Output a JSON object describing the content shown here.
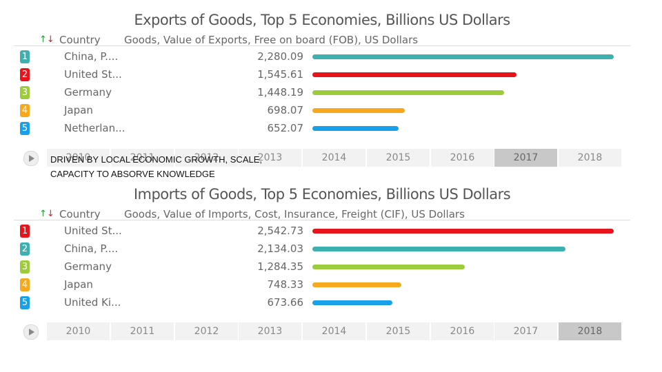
{
  "overlay_text": "DRIVEN BY LOCAL ECONOMIC GROWTH, SCALE,\nCAPACITY TO ABSORVE KNOWLEDGE",
  "chart_data": [
    {
      "type": "bar",
      "title": "Exports of Goods, Top 5 Economies, Billions US Dollars",
      "sort_icon": "↑↓",
      "country_header": "Country",
      "value_header": "Goods, Value of Exports, Free on board (FOB), US Dollars",
      "xlim": [
        0,
        2280.09
      ],
      "rows": [
        {
          "rank": "1",
          "country": "China, P....",
          "value": 2280.09,
          "value_label": "2,280.09",
          "color": "#3fb0b0"
        },
        {
          "rank": "2",
          "country": "United St...",
          "value": 1545.61,
          "value_label": "1,545.61",
          "color": "#e8141c"
        },
        {
          "rank": "3",
          "country": "Germany",
          "value": 1448.19,
          "value_label": "1,448.19",
          "color": "#9ccc3c"
        },
        {
          "rank": "4",
          "country": "Japan",
          "value": 698.07,
          "value_label": "698.07",
          "color": "#f6a81e"
        },
        {
          "rank": "5",
          "country": "Netherlan...",
          "value": 652.07,
          "value_label": "652.07",
          "color": "#1aa0e8"
        }
      ],
      "timeline": {
        "years": [
          "2010",
          "2011",
          "2012",
          "2013",
          "2014",
          "2015",
          "2016",
          "2017",
          "2018"
        ],
        "selected": "2017"
      }
    },
    {
      "type": "bar",
      "title": "Imports of Goods, Top 5 Economies, Billions US Dollars",
      "sort_icon": "↑↓",
      "country_header": "Country",
      "value_header": "Goods, Value of Imports, Cost, Insurance, Freight (CIF), US Dollars",
      "xlim": [
        0,
        2542.73
      ],
      "rows": [
        {
          "rank": "1",
          "country": "United St...",
          "value": 2542.73,
          "value_label": "2,542.73",
          "color": "#e8141c"
        },
        {
          "rank": "2",
          "country": "China, P....",
          "value": 2134.03,
          "value_label": "2,134.03",
          "color": "#3fb0b0"
        },
        {
          "rank": "3",
          "country": "Germany",
          "value": 1284.35,
          "value_label": "1,284.35",
          "color": "#9ccc3c"
        },
        {
          "rank": "4",
          "country": "Japan",
          "value": 748.33,
          "value_label": "748.33",
          "color": "#f6a81e"
        },
        {
          "rank": "5",
          "country": "United Ki...",
          "value": 673.66,
          "value_label": "673.66",
          "color": "#1aa0e8"
        }
      ],
      "timeline": {
        "years": [
          "2010",
          "2011",
          "2012",
          "2013",
          "2014",
          "2015",
          "2016",
          "2017",
          "2018"
        ],
        "selected": "2018"
      }
    }
  ]
}
